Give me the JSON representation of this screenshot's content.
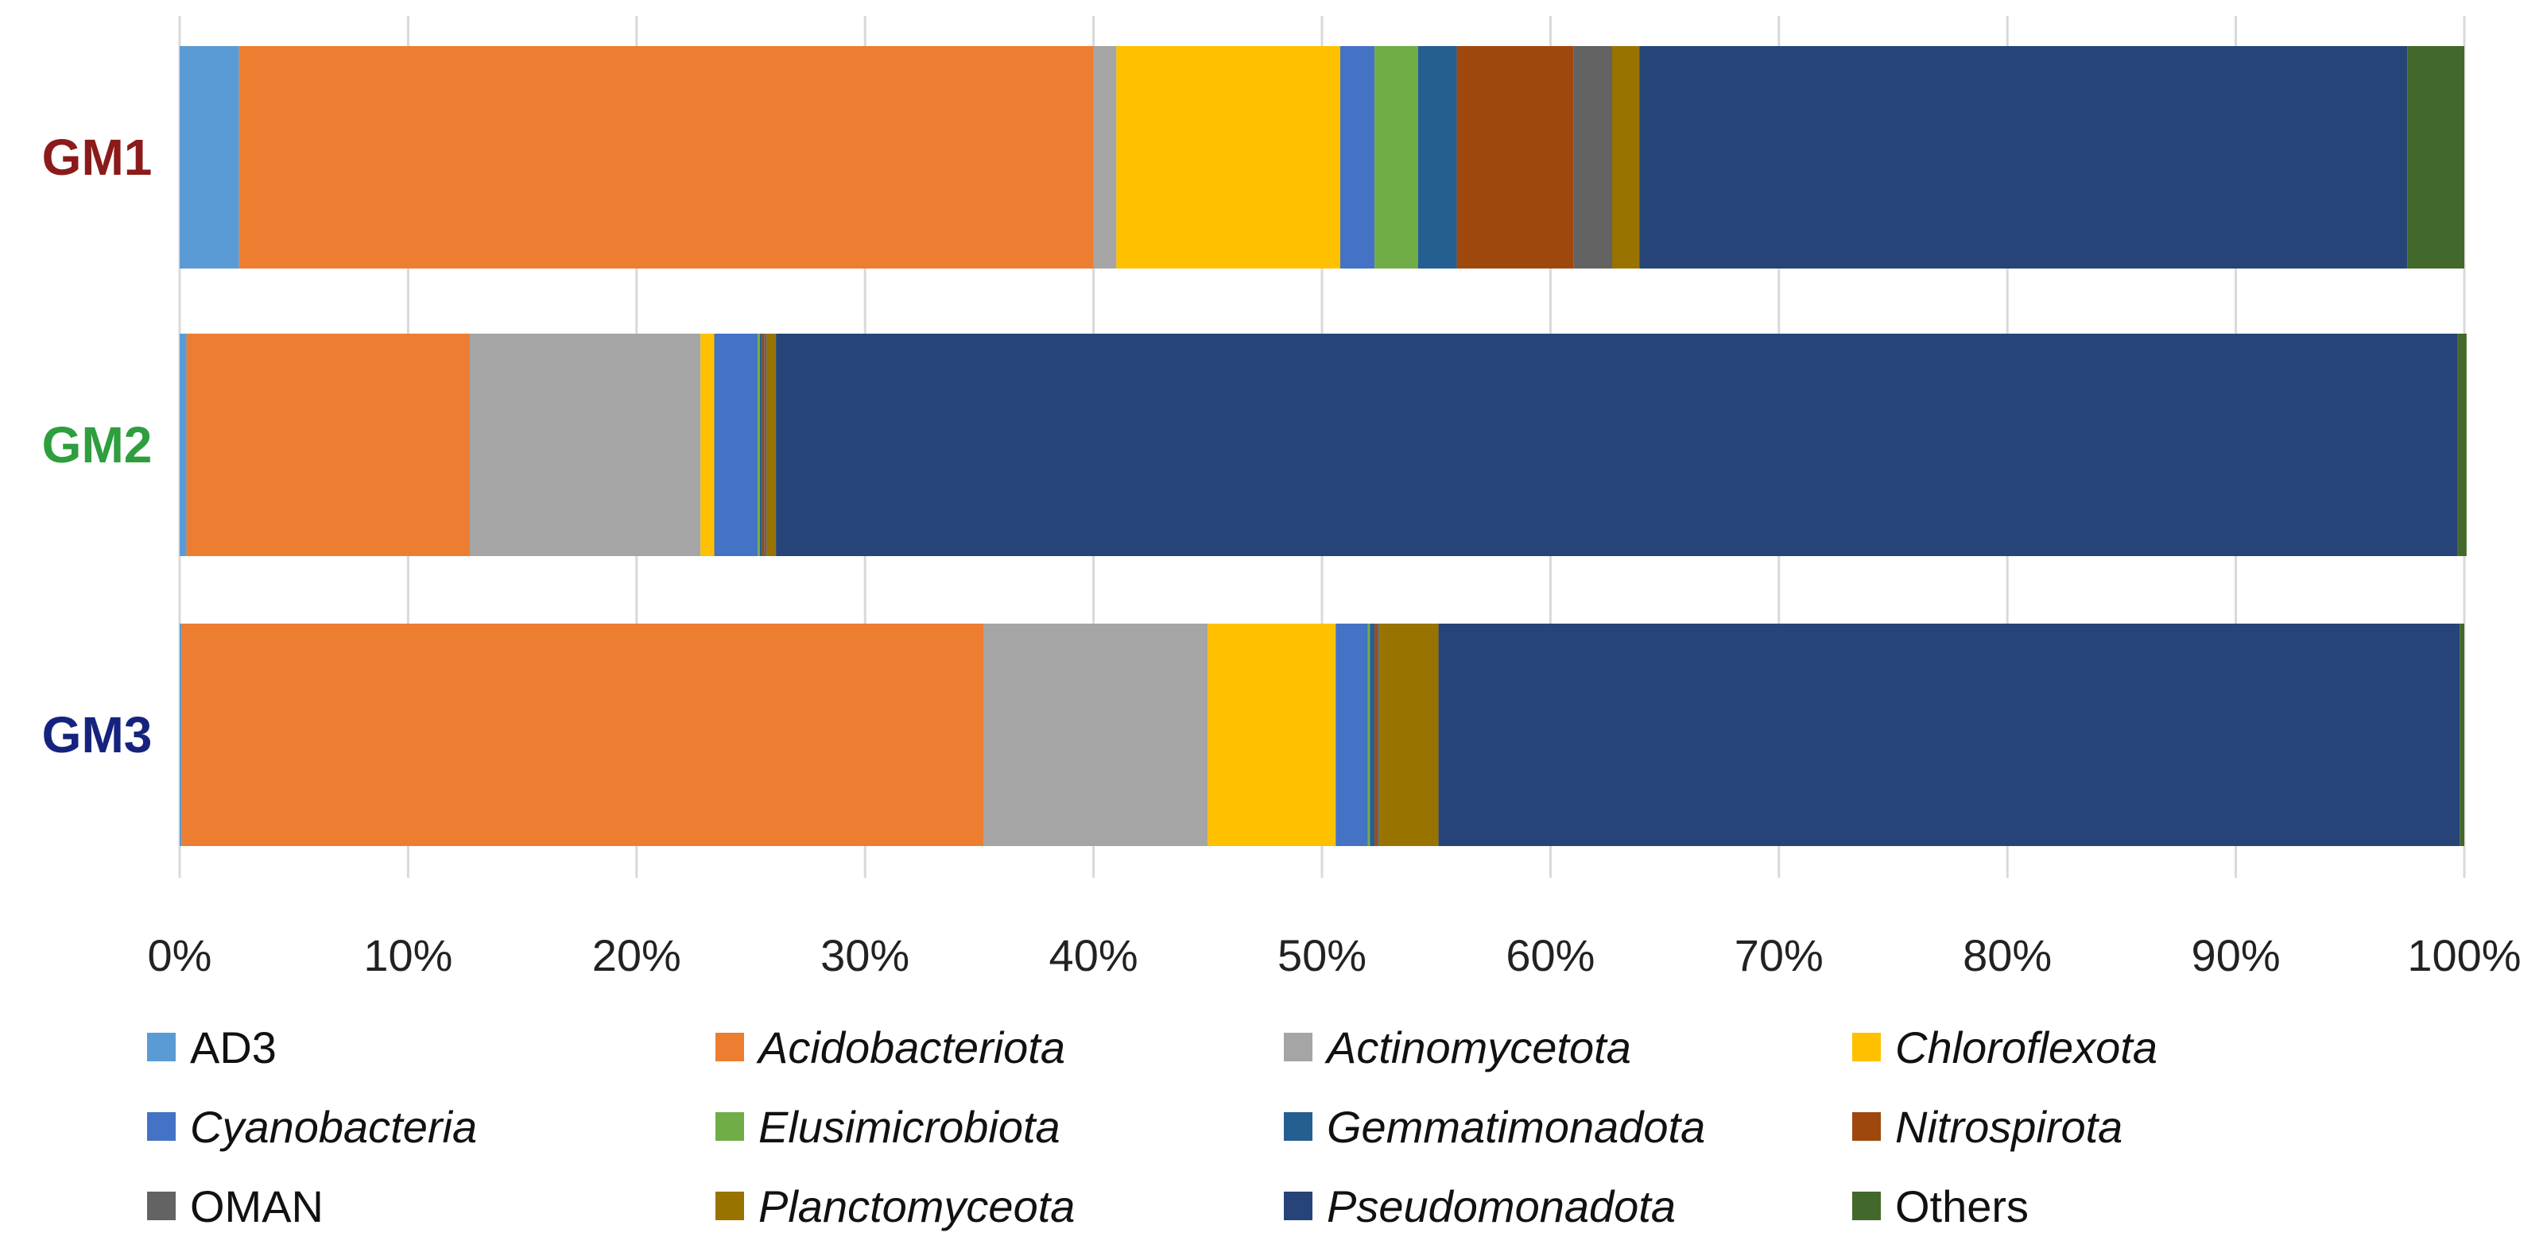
{
  "chart_data": {
    "type": "bar",
    "orientation": "horizontal",
    "stacked": true,
    "normalized_percent": true,
    "categories": [
      "GM1",
      "GM2",
      "GM3"
    ],
    "category_colors": [
      "#8B1A1A",
      "#2E9E3E",
      "#16237E"
    ],
    "xlim": [
      0,
      100
    ],
    "xticks": [
      "0%",
      "10%",
      "20%",
      "30%",
      "40%",
      "50%",
      "60%",
      "70%",
      "80%",
      "90%",
      "100%"
    ],
    "xtick_values": [
      0,
      10,
      20,
      30,
      40,
      50,
      60,
      70,
      80,
      90,
      100
    ],
    "grid": true,
    "legend_position": "bottom",
    "series": [
      {
        "name": "AD3",
        "italic": false,
        "color": "#5B9BD5",
        "values": [
          2.6,
          0.3,
          0.1
        ]
      },
      {
        "name": "Acidobacteriota",
        "italic": true,
        "color": "#ED7D31",
        "values": [
          37.4,
          12.4,
          35.1
        ]
      },
      {
        "name": "Actinomycetota",
        "italic": true,
        "color": "#A5A5A5",
        "values": [
          1.0,
          10.1,
          9.8
        ]
      },
      {
        "name": "Chloroflexota",
        "italic": true,
        "color": "#FFC000",
        "values": [
          9.8,
          0.6,
          5.6
        ]
      },
      {
        "name": "Cyanobacteria",
        "italic": true,
        "color": "#4472C4",
        "values": [
          1.5,
          1.9,
          1.4
        ]
      },
      {
        "name": "Elusimicrobiota",
        "italic": true,
        "color": "#70AD47",
        "values": [
          1.9,
          0.1,
          0.1
        ]
      },
      {
        "name": "Gemmatimonadota",
        "italic": true,
        "color": "#255E91",
        "values": [
          1.7,
          0.1,
          0.2
        ]
      },
      {
        "name": "Nitrospirota",
        "italic": true,
        "color": "#9E480E",
        "values": [
          5.1,
          0.1,
          0.1
        ]
      },
      {
        "name": "OMAN",
        "italic": false,
        "color": "#636363",
        "values": [
          1.7,
          0.1,
          0.1
        ]
      },
      {
        "name": "Planctomyceota",
        "italic": true,
        "color": "#997300",
        "values": [
          1.2,
          0.4,
          2.6
        ]
      },
      {
        "name": "Pseudomonadota",
        "italic": true,
        "color": "#264478",
        "values": [
          33.6,
          73.6,
          44.7
        ]
      },
      {
        "name": "Others",
        "italic": false,
        "color": "#43682B",
        "values": [
          2.5,
          0.4,
          0.2
        ]
      }
    ]
  }
}
